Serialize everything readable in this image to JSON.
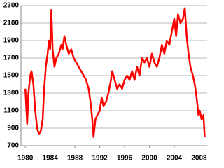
{
  "chart_data": {
    "type": "line",
    "x": [
      1980.0,
      1980.3,
      1980.5,
      1980.8,
      1981.0,
      1981.3,
      1981.6,
      1981.9,
      1982.2,
      1982.5,
      1982.8,
      1983.0,
      1983.3,
      1983.6,
      1983.8,
      1984.0,
      1984.2,
      1984.4,
      1984.7,
      1985.0,
      1985.4,
      1985.8,
      1986.0,
      1986.3,
      1986.6,
      1987.0,
      1987.4,
      1987.8,
      1988.2,
      1988.6,
      1989.0,
      1989.4,
      1989.8,
      1990.2,
      1990.6,
      1990.9,
      1991.0,
      1991.3,
      1991.6,
      1992.0,
      1992.3,
      1992.6,
      1993.0,
      1993.4,
      1993.8,
      1994.0,
      1994.4,
      1994.8,
      1995.2,
      1995.6,
      1996.0,
      1996.4,
      1996.8,
      1997.2,
      1997.6,
      1998.0,
      1998.4,
      1998.8,
      1999.2,
      1999.6,
      2000.0,
      2000.4,
      2000.8,
      2001.2,
      2001.6,
      2002.0,
      2002.4,
      2002.8,
      2003.2,
      2003.6,
      2004.0,
      2004.3,
      2004.6,
      2005.0,
      2005.4,
      2005.7,
      2006.0,
      2006.3,
      2006.6,
      2007.0,
      2007.3,
      2007.6,
      2007.9,
      2008.1,
      2008.4,
      2008.7,
      2008.9
    ],
    "series": [
      {
        "color": "#ff0000",
        "values": [
          1350,
          950,
          1300,
          1500,
          1550,
          1400,
          1100,
          900,
          830,
          870,
          1000,
          1300,
          1600,
          1750,
          1900,
          1800,
          2250,
          1800,
          1600,
          1700,
          1750,
          1850,
          1800,
          1950,
          1850,
          1750,
          1800,
          1700,
          1650,
          1600,
          1550,
          1500,
          1450,
          1350,
          1150,
          900,
          800,
          1000,
          1050,
          1100,
          1250,
          1150,
          1200,
          1300,
          1450,
          1550,
          1450,
          1350,
          1400,
          1350,
          1450,
          1500,
          1450,
          1550,
          1450,
          1600,
          1500,
          1700,
          1650,
          1700,
          1600,
          1750,
          1650,
          1600,
          1700,
          1850,
          1750,
          1900,
          1850,
          2000,
          2150,
          1950,
          2200,
          2100,
          2150,
          2270,
          1950,
          1750,
          1600,
          1500,
          1400,
          1250,
          1050,
          1100,
          1000,
          1050,
          800
        ]
      }
    ],
    "xlim": [
      1979.3,
      2009.3
    ],
    "xticks": [
      1980,
      1984,
      1988,
      1992,
      1996,
      2000,
      2004,
      2008
    ],
    "ylim": [
      700,
      2300
    ],
    "yticks": [
      700,
      900,
      1100,
      1300,
      1500,
      1700,
      1900,
      2100,
      2300
    ],
    "grid": true
  }
}
